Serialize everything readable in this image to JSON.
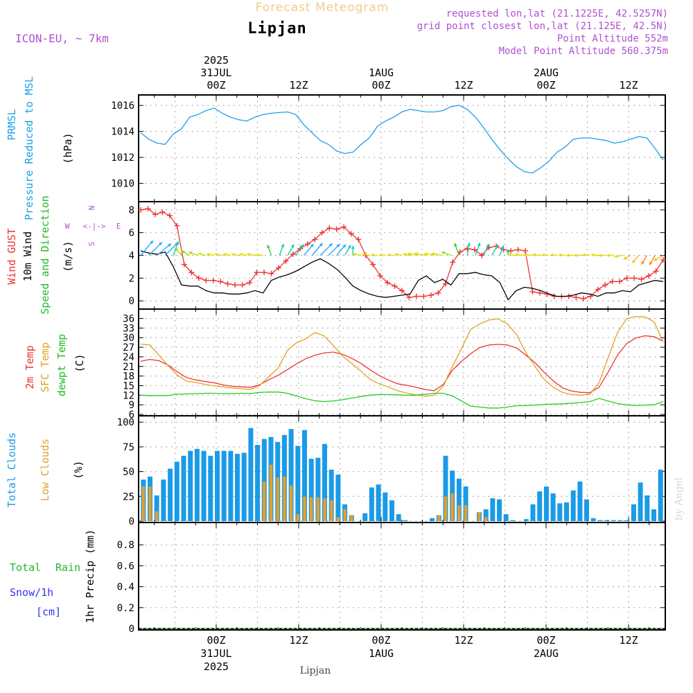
{
  "header": {
    "subtitle_faded": "Forecast Meteogram",
    "location": "Lipjan",
    "model": "ICON-EU, ~ 7km",
    "requested": "requested lon,lat (21.1225E, 42.5257N)",
    "grid_point": "grid point closest lon,lat (21.125E, 42.5N)",
    "point_alt": "Point Altitude 552m",
    "model_alt": "Model Point Altitude 560.375m",
    "top_year": "2025",
    "footer_location": "Lipjan",
    "watermark": "by Angel"
  },
  "colors": {
    "pressure": "#1aa0e8",
    "gust": "#ee3333",
    "wind10": "#000000",
    "temp2m": "#ee3333",
    "sfc": "#e0a020",
    "dew": "#22cc22",
    "total_cloud": "#1a9be8",
    "low_cloud": "#e0a030",
    "purple": "#b050d0",
    "rain": "#22bb22",
    "snow": "#3333ee"
  },
  "chart_data": {
    "type": "meteogram",
    "hours": 64,
    "start_hour_offset": -9,
    "time_axis": {
      "major": [
        {
          "h": 0,
          "top_date": "31JUL",
          "top_time": "00Z",
          "bot_time": "00Z",
          "bot_date": "31JUL"
        },
        {
          "h": 12,
          "top_date": "",
          "top_time": "12Z",
          "bot_time": "12Z",
          "bot_date": ""
        },
        {
          "h": 24,
          "top_date": "1AUG",
          "top_time": "00Z",
          "bot_time": "00Z",
          "bot_date": "1AUG"
        },
        {
          "h": 36,
          "top_date": "",
          "top_time": "12Z",
          "bot_time": "12Z",
          "bot_date": ""
        },
        {
          "h": 48,
          "top_date": "2AUG",
          "top_time": "00Z",
          "bot_time": "00Z",
          "bot_date": "2AUG"
        },
        {
          "h": 60,
          "top_date": "",
          "top_time": "12Z",
          "bot_time": "12Z",
          "bot_date": ""
        }
      ],
      "year": "2025"
    },
    "panels": [
      {
        "id": "pressure",
        "labels": [
          {
            "text": "PRMSL",
            "color": "#1aa0e8"
          },
          {
            "text": "Pressure Reduced to MSL",
            "color": "#1aa0e8"
          },
          {
            "text": "(hPa)",
            "color": "#000000"
          }
        ],
        "yticks": [
          "1010",
          "1012",
          "1014",
          "1016"
        ],
        "ylim": [
          1008.7,
          1016.7
        ],
        "series": [
          {
            "type": "line",
            "color": "#1aa0e8",
            "values": [
              1013.9,
              1013.4,
              1013.1,
              1013.0,
              1013.8,
              1014.2,
              1015.1,
              1015.3,
              1015.6,
              1015.8,
              1015.4,
              1015.1,
              1014.9,
              1014.8,
              1015.1,
              1015.3,
              1015.4,
              1015.45,
              1015.5,
              1015.3,
              1014.5,
              1013.9,
              1013.3,
              1013.0,
              1012.5,
              1012.3,
              1012.4,
              1013.0,
              1013.5,
              1014.4,
              1014.8,
              1015.1,
              1015.5,
              1015.7,
              1015.6,
              1015.5,
              1015.5,
              1015.6,
              1015.9,
              1016.0,
              1015.7,
              1015.1,
              1014.3,
              1013.4,
              1012.6,
              1011.9,
              1011.3,
              1010.9,
              1010.8,
              1011.2,
              1011.7,
              1012.4,
              1012.8,
              1013.4,
              1013.5,
              1013.5,
              1013.4,
              1013.3,
              1013.1,
              1013.2,
              1013.4,
              1013.6,
              1013.5,
              1012.7,
              1011.8
            ]
          }
        ]
      },
      {
        "id": "wind",
        "labels": [
          {
            "text": "Wind GUST",
            "color": "#ee3333"
          },
          {
            "text": "10m Wind",
            "color": "#000000"
          },
          {
            "text": "Speed and Direction",
            "color": "#22bb22"
          },
          {
            "text": "(m/s)",
            "color": "#000000"
          }
        ],
        "yticks": [
          "0",
          "2",
          "4",
          "6",
          "8"
        ],
        "ylim": [
          -0.6,
          8.6
        ],
        "compass": {
          "n": "N",
          "s": "S",
          "w": "W",
          "e": "E",
          "arrows": "<-|->"
        },
        "series": [
          {
            "type": "line",
            "color": "#ee3333",
            "marker": "plus",
            "values": [
              8.0,
              8.1,
              7.6,
              7.8,
              7.5,
              6.6,
              3.2,
              2.5,
              2.0,
              1.8,
              1.8,
              1.7,
              1.5,
              1.4,
              1.4,
              1.6,
              2.5,
              2.5,
              2.4,
              2.9,
              3.5,
              4.1,
              4.6,
              5.0,
              5.4,
              6.0,
              6.4,
              6.3,
              6.5,
              5.9,
              5.4,
              4.0,
              3.2,
              2.2,
              1.6,
              1.3,
              0.9,
              0.3,
              0.4,
              0.4,
              0.5,
              0.7,
              1.5,
              3.4,
              4.3,
              4.6,
              4.5,
              4.0,
              4.7,
              4.8,
              4.5,
              4.4,
              4.5,
              4.4,
              0.8,
              0.7,
              0.6,
              0.4,
              0.4,
              0.4,
              0.3,
              0.2,
              0.4,
              1.0,
              1.4,
              1.7,
              1.7,
              2.0,
              2.0,
              1.9,
              2.2,
              2.6,
              3.6
            ]
          },
          {
            "type": "line",
            "color": "#000000",
            "values": [
              4.4,
              4.2,
              4.1,
              4.3,
              3.0,
              1.4,
              1.3,
              1.3,
              0.9,
              0.7,
              0.7,
              0.6,
              0.6,
              0.7,
              0.9,
              0.7,
              1.8,
              2.1,
              2.3,
              2.6,
              3.0,
              3.4,
              3.7,
              3.3,
              2.8,
              2.1,
              1.3,
              0.9,
              0.6,
              0.4,
              0.3,
              0.4,
              0.5,
              0.6,
              1.8,
              2.2,
              1.6,
              1.9,
              1.4,
              2.4,
              2.4,
              2.5,
              2.3,
              2.2,
              1.6,
              0.1,
              0.9,
              1.2,
              1.1,
              0.9,
              0.6,
              0.4,
              0.4,
              0.5,
              0.7,
              0.6,
              0.4,
              0.7,
              0.7,
              0.9,
              0.8,
              1.4,
              1.6,
              1.8,
              1.7
            ]
          },
          {
            "type": "arrows",
            "dirs": [
              220,
              225,
              230,
              225,
              200,
              140,
              120,
              110,
              105,
              100,
              100,
              100,
              100,
              100,
              100,
              95,
              160,
              200,
              210,
              215,
              220,
              220,
              225,
              225,
              220,
              210,
              180,
              100,
              100,
              95,
              95,
              95,
              100,
              100,
              100,
              100,
              100,
              100,
              110,
              160,
              190,
              200,
              205,
              210,
              200,
              180,
              95,
              95,
              95,
              95,
              95,
              95,
              95,
              90,
              90,
              95,
              95,
              90,
              90,
              80,
              60,
              40,
              30,
              30,
              60
            ]
          }
        ]
      },
      {
        "id": "temp",
        "labels": [
          {
            "text": "2m Temp",
            "color": "#ee3333"
          },
          {
            "text": "SFC Temp",
            "color": "#e0a020"
          },
          {
            "text": "dewpt Temp",
            "color": "#22bb22"
          },
          {
            "text": "(C)",
            "color": "#000000"
          }
        ],
        "yticks": [
          "6",
          "9",
          "12",
          "15",
          "18",
          "21",
          "24",
          "27",
          "30",
          "33",
          "36"
        ],
        "ylim": [
          6,
          38.5
        ],
        "series": [
          {
            "type": "line",
            "color": "#ee3333",
            "values": [
              22.6,
              23.2,
              22.8,
              21.4,
              19.3,
              17.5,
              16.8,
              16.3,
              15.9,
              15.2,
              14.8,
              14.6,
              14.5,
              15.3,
              16.9,
              18.2,
              20.0,
              21.8,
              23.4,
              24.5,
              25.2,
              25.5,
              24.8,
              23.6,
              22.0,
              20.0,
              18.2,
              16.8,
              15.6,
              15.1,
              14.5,
              13.8,
              13.4,
              15.3,
              19.8,
              22.6,
              25.0,
              26.9,
              27.7,
              27.9,
              27.7,
              26.8,
              24.6,
              22.2,
              19.2,
              16.5,
              14.3,
              13.3,
              12.9,
              12.8,
              14.5,
              19.2,
              24.5,
              28.1,
              29.9,
              30.6,
              30.3,
              28.9
            ]
          },
          {
            "type": "line",
            "color": "#e0a020",
            "values": [
              28.0,
              27.7,
              24.5,
              21.2,
              18.3,
              16.4,
              16.0,
              15.4,
              14.9,
              14.6,
              14.3,
              14.0,
              13.8,
              15.1,
              17.9,
              20.5,
              26.0,
              28.4,
              29.6,
              31.6,
              30.6,
              27.6,
              24.3,
              22.0,
              19.6,
              17.0,
              15.6,
              14.6,
              13.4,
              12.7,
              12.1,
              11.7,
              12.0,
              14.7,
              21.0,
              26.6,
              32.6,
              34.3,
              35.5,
              35.9,
              34.3,
              31.0,
              25.4,
              21.0,
              17.0,
              14.5,
              12.9,
              12.2,
              12.0,
              12.3,
              15.9,
              23.8,
              31.5,
              35.9,
              36.6,
              36.5,
              35.0,
              28.6
            ]
          },
          {
            "type": "line",
            "color": "#22cc22",
            "values": [
              12.0,
              11.9,
              11.9,
              11.9,
              12.3,
              12.4,
              12.5,
              12.6,
              12.6,
              12.5,
              12.5,
              12.6,
              12.5,
              12.9,
              13.0,
              13.0,
              12.6,
              11.8,
              10.9,
              10.3,
              10.0,
              10.2,
              10.6,
              11.1,
              11.6,
              12.0,
              12.2,
              12.2,
              12.1,
              12.0,
              12.0,
              12.3,
              12.6,
              12.6,
              11.8,
              10.2,
              8.6,
              8.3,
              8.0,
              8.0,
              8.3,
              8.7,
              8.8,
              8.9,
              9.1,
              9.2,
              9.3,
              9.5,
              9.7,
              10.0,
              11.0,
              10.2,
              9.4,
              9.0,
              8.8,
              8.9,
              9.0,
              10.0
            ]
          }
        ]
      },
      {
        "id": "cloud",
        "labels": [
          {
            "text": "Total Clouds",
            "color": "#1a9be8"
          },
          {
            "text": "Low Clouds",
            "color": "#e0a030"
          },
          {
            "text": "(%)",
            "color": "#000000"
          }
        ],
        "yticks": [
          "0",
          "25",
          "50",
          "75",
          "100"
        ],
        "ylim": [
          0,
          105
        ],
        "series": [
          {
            "type": "bar",
            "name": "Total",
            "color": "#1a9be8",
            "values": [
              42,
              45,
              26,
              42,
              53,
              60,
              66,
              71,
              73,
              71,
              66,
              71,
              71,
              71,
              68,
              69,
              94,
              77,
              83,
              85,
              80,
              87,
              93,
              76,
              92,
              63,
              64,
              78,
              52,
              47,
              17,
              6,
              0,
              8,
              34,
              37,
              29,
              21,
              7,
              1,
              0,
              0,
              0,
              3,
              6,
              66,
              51,
              43,
              35,
              0,
              9,
              12,
              23,
              22,
              7,
              1,
              0,
              2,
              17,
              30,
              35,
              28,
              18,
              19,
              31,
              40,
              22,
              3,
              1,
              1,
              1,
              1,
              1,
              17,
              39,
              26,
              12,
              52
            ]
          },
          {
            "type": "bar",
            "name": "Low",
            "color": "#e0a030",
            "values": [
              35,
              35,
              10,
              0,
              0,
              0,
              0,
              0,
              0,
              0,
              0,
              0,
              0,
              0,
              0,
              0,
              0,
              0,
              40,
              57,
              44,
              45,
              36,
              7,
              25,
              24,
              24,
              23,
              21,
              4,
              12,
              6,
              0,
              0,
              0,
              0,
              0,
              0,
              0,
              0,
              0,
              0,
              0,
              0,
              6,
              25,
              28,
              16,
              16,
              0,
              9,
              4,
              0,
              0,
              0,
              0,
              0,
              0,
              0,
              0,
              0,
              0,
              0,
              0,
              0,
              0,
              0,
              0,
              0,
              0,
              0,
              0,
              0,
              0,
              0,
              0,
              0,
              0
            ]
          }
        ]
      },
      {
        "id": "precip",
        "labels": [
          {
            "text": "Total",
            "color": "#22bb22"
          },
          {
            "text": "Rain",
            "color": "#22bb22"
          },
          {
            "text": "Snow/1h",
            "color": "#3333ee"
          },
          {
            "text": "[cm]",
            "color": "#3333ee"
          },
          {
            "text": "1hr Precip (mm)",
            "color": "#000000"
          }
        ],
        "yticks": [
          "0",
          "0.2",
          "0.4",
          "0.6",
          "0.8"
        ],
        "ylim": [
          0,
          1.0
        ],
        "series": [
          {
            "type": "line",
            "name": "rain",
            "color": "#22bb22",
            "values": [
              0,
              0,
              0,
              0,
              0,
              0,
              0,
              0,
              0,
              0
            ]
          }
        ]
      }
    ]
  }
}
